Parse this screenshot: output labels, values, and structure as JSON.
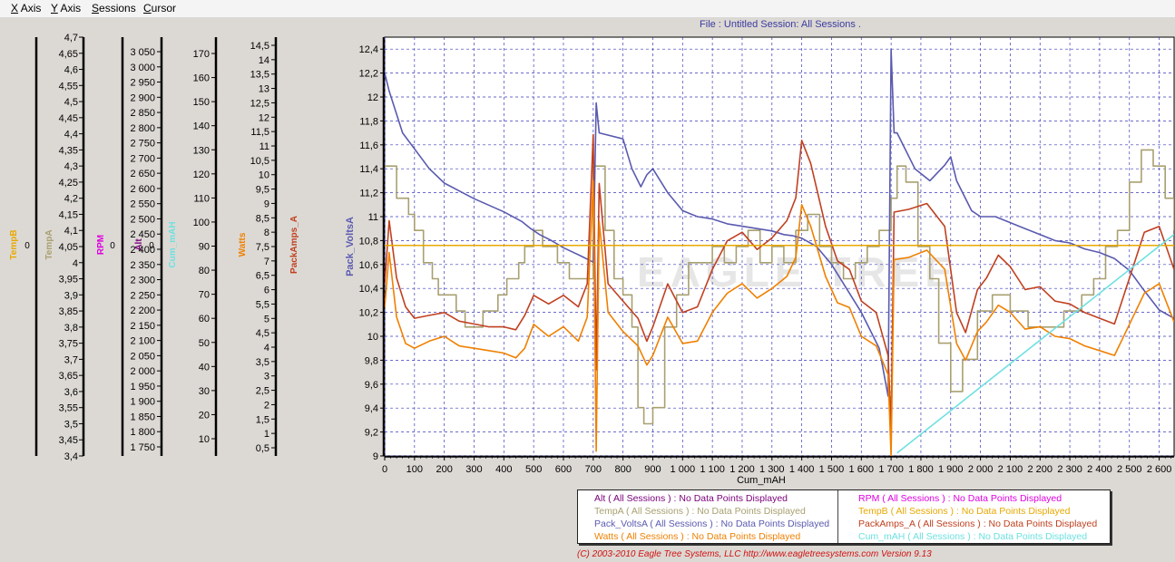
{
  "menu": [
    {
      "accel": "X",
      "rest": " Axis"
    },
    {
      "accel": "Y",
      "rest": " Axis"
    },
    {
      "accel": "S",
      "rest": "essions"
    },
    {
      "accel": "C",
      "rest": "ursor"
    }
  ],
  "header": {
    "title": "File : Untitled   Session: All Sessions ."
  },
  "watermark": "EAGLE TREE",
  "footer": {
    "text": "(C) 2003-2010 Eagle Tree Systems, LLC     http://www.eagletreesystems.com     Version 9.13"
  },
  "legend": {
    "left": [
      {
        "text": "Alt ( All Sessions ) : No Data Points Displayed",
        "color": "#7a007a"
      },
      {
        "text": "TempA ( All Sessions ) : No Data Points Displayed",
        "color": "#a8a070"
      },
      {
        "text": "Pack_VoltsA ( All Sessions ) : No Data Points Displayed",
        "color": "#5a5ab0"
      },
      {
        "text": "Watts ( All Sessions ) : No Data Points Displayed",
        "color": "#f08000"
      }
    ],
    "right": [
      {
        "text": "RPM ( All Sessions ) : No Data Points Displayed",
        "color": "#e000e0"
      },
      {
        "text": "TempB ( All Sessions ) : No Data Points Displayed",
        "color": "#e8a800"
      },
      {
        "text": "PackAmps_A ( All Sessions ) : No Data Points Displayed",
        "color": "#c04020"
      },
      {
        "text": "Cum_mAH ( All Sessions ) : No Data Points Displayed",
        "color": "#6ee0e0"
      }
    ]
  },
  "chart_data": {
    "type": "line",
    "xlabel": "Cum_mAH",
    "xlim": [
      0,
      2650
    ],
    "x_ticks": [
      "0",
      "100",
      "200",
      "300",
      "400",
      "500",
      "600",
      "700",
      "800",
      "900",
      "1 000",
      "1 100",
      "1 200",
      "1 300",
      "1 400",
      "1 500",
      "1 600",
      "1 700",
      "1 800",
      "1 900",
      "2 000",
      "2 100",
      "2 200",
      "2 300",
      "2 400",
      "2 500",
      "2 600"
    ],
    "grid": true,
    "main_y": {
      "label": "Pack_VoltsA",
      "color": "#5a5ab0",
      "ylim": [
        9,
        12.5
      ],
      "ticks": [
        "12,4",
        "12,2",
        "12",
        "11,8",
        "11,6",
        "11,4",
        "11,2",
        "11",
        "10,8",
        "10,6",
        "10,4",
        "10,2",
        "10",
        "9,8",
        "9,6",
        "9,4",
        "9,2",
        "9"
      ]
    },
    "y_axes": [
      {
        "label": "TempB",
        "color": "#e8a800",
        "ticks": [
          "0"
        ]
      },
      {
        "label": "TempA",
        "color": "#a8a070",
        "ticks": [
          "4,7",
          "4,65",
          "4,6",
          "4,55",
          "4,5",
          "4,45",
          "4,4",
          "4,35",
          "4,3",
          "4,25",
          "4,2",
          "4,15",
          "4,1",
          "4,05",
          "4",
          "3,95",
          "3,9",
          "3,85",
          "3,8",
          "3,75",
          "3,7",
          "3,65",
          "3,6",
          "3,55",
          "3,5",
          "3,45",
          "3,4"
        ]
      },
      {
        "label": "RPM",
        "color": "#e000e0",
        "ticks": [
          "0"
        ]
      },
      {
        "label": "Alt",
        "color": "#7a007a",
        "ticks": [
          "0"
        ]
      },
      {
        "label": "Cum_mAH",
        "color": "#6ee0e0",
        "ticks": [
          "3 050",
          "3 000",
          "2 950",
          "2 900",
          "2 850",
          "2 800",
          "2 750",
          "2 700",
          "2 650",
          "2 600",
          "2 550",
          "2 500",
          "2 450",
          "2 400",
          "2 350",
          "2 300",
          "2 250",
          "2 200",
          "2 150",
          "2 100",
          "2 050",
          "2 000",
          "1 950",
          "1 900",
          "1 850",
          "1 800",
          "1 750"
        ]
      },
      {
        "label": "Watts",
        "color": "#f08000",
        "ticks": [
          "170",
          "160",
          "150",
          "140",
          "130",
          "120",
          "110",
          "100",
          "90",
          "80",
          "70",
          "60",
          "50",
          "40",
          "30",
          "20",
          "10"
        ]
      },
      {
        "label": "PackAmps_A",
        "color": "#c04020",
        "ticks": [
          "14,5",
          "14",
          "13,5",
          "13",
          "12,5",
          "12",
          "11,5",
          "11",
          "10,5",
          "10",
          "9,5",
          "9",
          "8,5",
          "8",
          "7,5",
          "7",
          "6,5",
          "6",
          "5,5",
          "5",
          "4,5",
          "4",
          "3,5",
          "3",
          "2,5",
          "2",
          "1,5",
          "1",
          "0,5"
        ]
      }
    ],
    "series": [
      {
        "name": "Pack_VoltsA",
        "color": "#5a5ab0",
        "x": [
          0,
          15,
          60,
          150,
          200,
          300,
          400,
          460,
          490,
          520,
          560,
          600,
          660,
          700,
          710,
          720,
          800,
          830,
          860,
          880,
          900,
          950,
          1000,
          1050,
          1100,
          1150,
          1200,
          1250,
          1300,
          1340,
          1370,
          1400,
          1450,
          1500,
          1550,
          1600,
          1660,
          1690,
          1700,
          1710,
          1720,
          1780,
          1830,
          1880,
          1900,
          1920,
          1970,
          2000,
          2050,
          2100,
          2150,
          2200,
          2250,
          2300,
          2350,
          2400,
          2450,
          2500,
          2550,
          2600,
          2650
        ],
        "y": [
          12.2,
          12.05,
          11.7,
          11.4,
          11.28,
          11.15,
          11.04,
          10.96,
          10.9,
          10.85,
          10.8,
          10.74,
          10.67,
          10.62,
          11.95,
          11.7,
          11.65,
          11.4,
          11.25,
          11.35,
          11.4,
          11.2,
          11.05,
          11.0,
          10.98,
          10.94,
          10.92,
          10.9,
          10.88,
          10.85,
          10.84,
          10.82,
          10.75,
          10.6,
          10.4,
          10.2,
          9.9,
          9.5,
          12.4,
          11.7,
          11.7,
          11.4,
          11.3,
          11.43,
          11.5,
          11.3,
          11.05,
          11.0,
          11.0,
          10.95,
          10.9,
          10.85,
          10.8,
          10.78,
          10.73,
          10.7,
          10.65,
          10.55,
          10.38,
          10.22,
          10.15
        ]
      },
      {
        "name": "TempA",
        "color": "#a8a070",
        "x": [
          0,
          20,
          40,
          60,
          80,
          100,
          130,
          160,
          180,
          210,
          240,
          270,
          300,
          330,
          360,
          380,
          410,
          450,
          470,
          500,
          530,
          580,
          620,
          660,
          700,
          720,
          740,
          770,
          800,
          830,
          850,
          870,
          900,
          940,
          980,
          1020,
          1060,
          1100,
          1140,
          1180,
          1220,
          1260,
          1300,
          1340,
          1380,
          1420,
          1460,
          1500,
          1540,
          1580,
          1620,
          1660,
          1700,
          1720,
          1750,
          1790,
          1830,
          1860,
          1900,
          1940,
          1990,
          2040,
          2100,
          2160,
          2220,
          2280,
          2340,
          2380,
          2420,
          2460,
          2500,
          2540,
          2580,
          2620,
          2650
        ],
        "y": [
          4.3,
          4.3,
          4.2,
          4.2,
          4.15,
          4.1,
          4.0,
          3.95,
          3.9,
          3.9,
          3.85,
          3.8,
          3.8,
          3.85,
          3.85,
          3.9,
          3.95,
          4.0,
          4.05,
          4.1,
          4.05,
          4.0,
          3.95,
          3.95,
          4.3,
          4.3,
          4.1,
          3.95,
          3.9,
          3.8,
          3.55,
          3.5,
          3.55,
          3.8,
          3.9,
          4.0,
          4.0,
          4.05,
          4.0,
          4.05,
          4.1,
          4.0,
          4.05,
          4.0,
          4.1,
          4.15,
          4.05,
          4.0,
          3.95,
          4.0,
          4.05,
          4.1,
          4.2,
          4.3,
          4.25,
          4.05,
          3.95,
          3.75,
          3.6,
          3.7,
          3.85,
          3.9,
          3.85,
          3.8,
          3.8,
          3.85,
          3.9,
          3.95,
          4.05,
          4.1,
          4.25,
          4.35,
          4.3,
          4.2,
          4.1
        ]
      },
      {
        "name": "PackAmps_A",
        "color": "#c04020",
        "x": [
          0,
          15,
          40,
          70,
          100,
          150,
          200,
          250,
          300,
          350,
          400,
          440,
          470,
          500,
          550,
          600,
          650,
          680,
          700,
          710,
          720,
          750,
          800,
          850,
          880,
          900,
          950,
          1000,
          1050,
          1100,
          1150,
          1200,
          1250,
          1300,
          1350,
          1380,
          1400,
          1430,
          1480,
          1520,
          1560,
          1600,
          1650,
          1690,
          1700,
          1710,
          1760,
          1820,
          1880,
          1920,
          1950,
          1990,
          2020,
          2060,
          2100,
          2150,
          2200,
          2250,
          2300,
          2350,
          2400,
          2450,
          2500,
          2550,
          2600,
          2650
        ],
        "y": [
          6.0,
          8.2,
          6.2,
          5.2,
          4.8,
          4.9,
          5.0,
          4.7,
          4.6,
          4.5,
          4.5,
          4.4,
          4.9,
          5.6,
          5.3,
          5.6,
          5.2,
          6.0,
          11.2,
          3.0,
          9.5,
          6.0,
          5.4,
          4.8,
          4.0,
          4.5,
          6.0,
          5.0,
          5.2,
          6.5,
          7.5,
          7.8,
          7.2,
          7.6,
          8.2,
          9.0,
          11.0,
          10.2,
          8.0,
          6.8,
          6.5,
          5.4,
          5.0,
          3.5,
          1.0,
          8.5,
          8.6,
          8.8,
          8.0,
          5.0,
          4.3,
          5.8,
          6.2,
          7.0,
          6.6,
          5.8,
          5.9,
          5.4,
          5.3,
          5.0,
          4.8,
          4.6,
          6.2,
          7.8,
          8.0,
          6.5
        ]
      },
      {
        "name": "Watts",
        "color": "#f08000",
        "x": [
          0,
          15,
          40,
          70,
          100,
          150,
          200,
          250,
          300,
          350,
          400,
          440,
          470,
          500,
          550,
          600,
          650,
          680,
          700,
          710,
          720,
          750,
          800,
          850,
          880,
          900,
          950,
          1000,
          1050,
          1100,
          1150,
          1200,
          1250,
          1300,
          1350,
          1380,
          1400,
          1430,
          1480,
          1520,
          1560,
          1600,
          1650,
          1690,
          1700,
          1710,
          1760,
          1820,
          1880,
          1920,
          1950,
          1990,
          2020,
          2060,
          2100,
          2150,
          2200,
          2250,
          2300,
          2350,
          2400,
          2450,
          2500,
          2550,
          2600,
          2650
        ],
        "y": [
          62,
          85,
          58,
          47,
          45,
          48,
          50,
          46,
          45,
          44,
          43,
          41,
          45,
          55,
          50,
          54,
          48,
          58,
          115,
          2,
          98,
          60,
          52,
          46,
          38,
          42,
          58,
          47,
          48,
          60,
          68,
          72,
          66,
          70,
          75,
          83,
          105,
          96,
          75,
          64,
          62,
          50,
          46,
          34,
          0,
          82,
          83,
          86,
          78,
          47,
          40,
          52,
          56,
          63,
          60,
          53,
          54,
          50,
          49,
          46,
          44,
          42,
          55,
          68,
          72,
          56
        ]
      },
      {
        "name": "TempB",
        "color": "#e8a800",
        "x": [
          0,
          2650
        ],
        "y": [
          10.76,
          10.76
        ]
      },
      {
        "name": "Cum_mAH",
        "color": "#6ee0e0",
        "x": [
          1720,
          2650
        ],
        "y": [
          1710,
          2450
        ]
      }
    ],
    "title": "",
    "legend_position": "bottom"
  }
}
